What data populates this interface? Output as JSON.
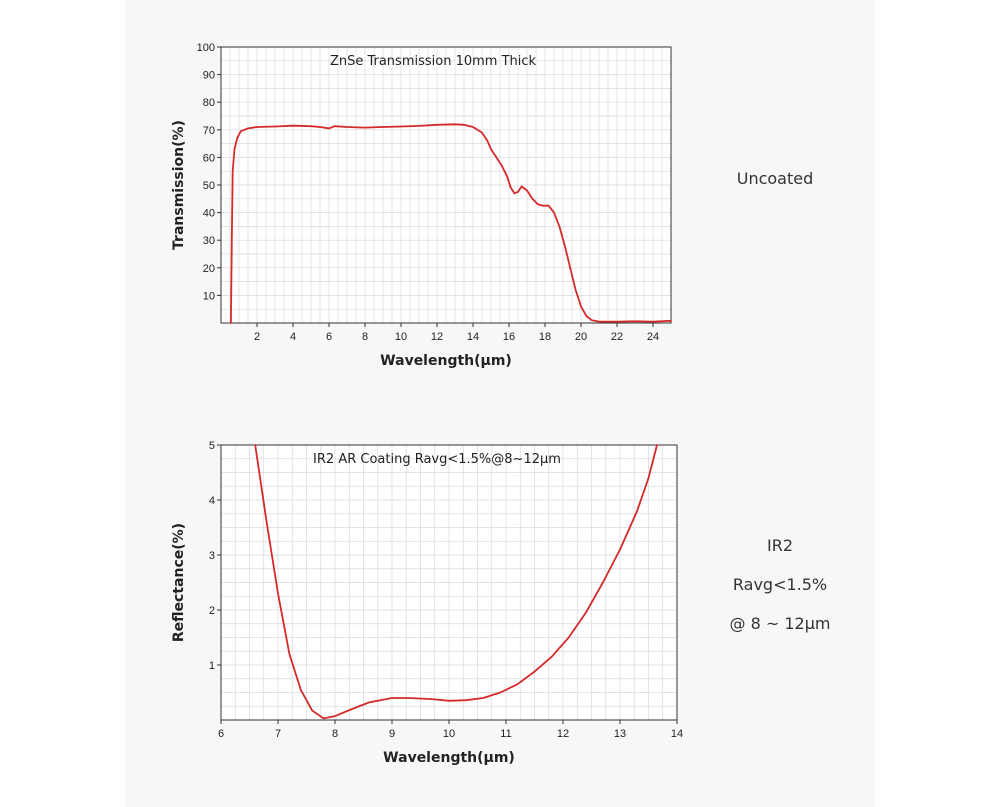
{
  "colors": {
    "curve": "#d42a2a",
    "grid": "#d9d9d9",
    "axis": "#333333",
    "text": "#222222"
  },
  "chart_data": [
    {
      "type": "line",
      "title": "ZnSe Transmission 10mm Thick",
      "xlabel": "Wavelength(μm)",
      "ylabel": "Transmission(%)",
      "xlim": [
        0,
        25
      ],
      "ylim": [
        0,
        100
      ],
      "xticks": [
        2,
        4,
        6,
        8,
        10,
        12,
        14,
        16,
        18,
        20,
        22,
        24
      ],
      "yticks": [
        10,
        20,
        30,
        40,
        50,
        60,
        70,
        80,
        90,
        100
      ],
      "grid": true,
      "x": [
        0.55,
        0.6,
        0.65,
        0.75,
        0.9,
        1.1,
        1.5,
        2,
        3,
        4,
        5,
        5.5,
        6,
        6.3,
        7,
        8,
        9,
        10,
        11,
        12,
        13,
        13.5,
        14,
        14.5,
        14.8,
        15,
        15.3,
        15.6,
        15.9,
        16.1,
        16.3,
        16.5,
        16.7,
        17,
        17.3,
        17.6,
        17.9,
        18.2,
        18.5,
        18.8,
        19.1,
        19.4,
        19.7,
        20,
        20.3,
        20.6,
        21,
        22,
        23,
        24,
        25
      ],
      "y": [
        0,
        30,
        55,
        63,
        67,
        69.5,
        70.5,
        71,
        71.2,
        71.5,
        71.3,
        71,
        70.5,
        71.3,
        71,
        70.8,
        71,
        71.2,
        71.4,
        71.8,
        72,
        71.8,
        71,
        69,
        66,
        63,
        60,
        57,
        53,
        49,
        47,
        47.5,
        49.5,
        48,
        45,
        43,
        42.5,
        42.5,
        40,
        35,
        28,
        20,
        12,
        6,
        2.5,
        1,
        0.5,
        0.5,
        0.6,
        0.5,
        0.8
      ]
    },
    {
      "type": "line",
      "title": "IR2 AR Coating Ravg<1.5%@8~12μm",
      "xlabel": "Wavelength(μm)",
      "ylabel": "Reflectance(%)",
      "xlim": [
        6,
        14
      ],
      "ylim": [
        0,
        5
      ],
      "xticks": [
        6,
        7,
        8,
        9,
        10,
        11,
        12,
        13,
        14
      ],
      "yticks": [
        1,
        2,
        3,
        4,
        5
      ],
      "grid": true,
      "x": [
        6.6,
        6.8,
        7.0,
        7.2,
        7.4,
        7.6,
        7.8,
        8.0,
        8.3,
        8.6,
        9.0,
        9.3,
        9.7,
        10.0,
        10.3,
        10.6,
        10.9,
        11.2,
        11.5,
        11.8,
        12.1,
        12.4,
        12.7,
        13.0,
        13.3,
        13.5,
        13.65
      ],
      "y": [
        5,
        3.6,
        2.3,
        1.2,
        0.55,
        0.17,
        0.03,
        0.07,
        0.2,
        0.32,
        0.4,
        0.4,
        0.38,
        0.35,
        0.36,
        0.4,
        0.5,
        0.65,
        0.88,
        1.15,
        1.5,
        1.95,
        2.5,
        3.1,
        3.8,
        4.4,
        5
      ]
    }
  ],
  "labels": {
    "uncoated": "Uncoated",
    "ir2_name": "IR2",
    "ir2_ravg": "Ravg<1.5%",
    "ir2_range": "@ 8 ~ 12μm"
  }
}
